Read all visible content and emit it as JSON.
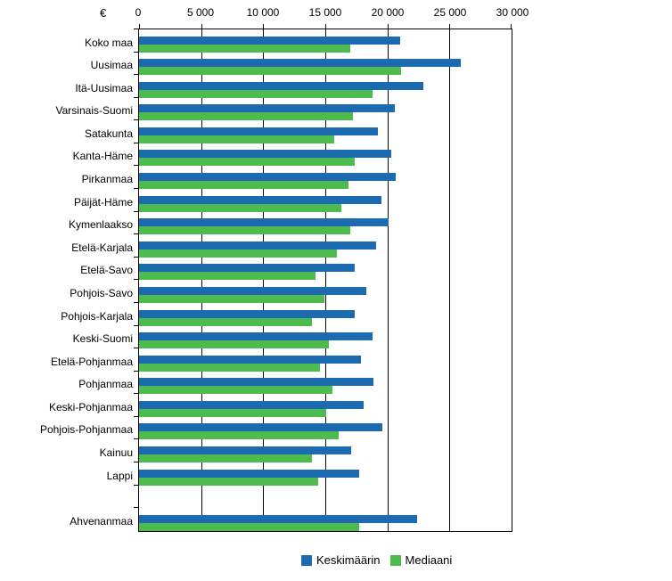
{
  "chart_data": {
    "type": "bar",
    "orientation": "horizontal",
    "title": "",
    "unit_label": "€",
    "categories": [
      "Koko maa",
      "Uusimaa",
      "Itä-Uusimaa",
      "Varsinais-Suomi",
      "Satakunta",
      "Kanta-Häme",
      "Pirkanmaa",
      "Päijät-Häme",
      "Kymenlaakso",
      "Etelä-Karjala",
      "Etelä-Savo",
      "Pohjois-Savo",
      "Pohjois-Karjala",
      "Keski-Suomi",
      "Etelä-Pohjanmaa",
      "Pohjanmaa",
      "Keski-Pohjanmaa",
      "Pohjois-Pohjanmaa",
      "Kainuu",
      "Lappi",
      "Ahvenanmaa"
    ],
    "series": [
      {
        "name": "Keskimäärin",
        "color": "#1c6bb0",
        "values": [
          21000,
          25900,
          22900,
          20600,
          19200,
          20300,
          20700,
          19500,
          20100,
          19100,
          17400,
          18300,
          17400,
          18800,
          17900,
          18900,
          18100,
          19600,
          17100,
          17700,
          22400
        ]
      },
      {
        "name": "Mediaani",
        "color": "#4dbb4d",
        "values": [
          17000,
          21100,
          18800,
          17200,
          15700,
          17400,
          16900,
          16300,
          17000,
          15900,
          14200,
          14900,
          13900,
          15300,
          14600,
          15600,
          15100,
          16100,
          13900,
          14400,
          17700
        ]
      }
    ],
    "xlim": [
      0,
      30000
    ],
    "xticks": [
      0,
      5000,
      10000,
      15000,
      20000,
      25000,
      30000
    ],
    "xtick_labels": [
      "0",
      "5 000",
      "10 000",
      "15 000",
      "20 000",
      "25 000",
      "30 000"
    ],
    "grid": true,
    "legend_position": "bottom",
    "separator_before_category": "Ahvenanmaa"
  }
}
